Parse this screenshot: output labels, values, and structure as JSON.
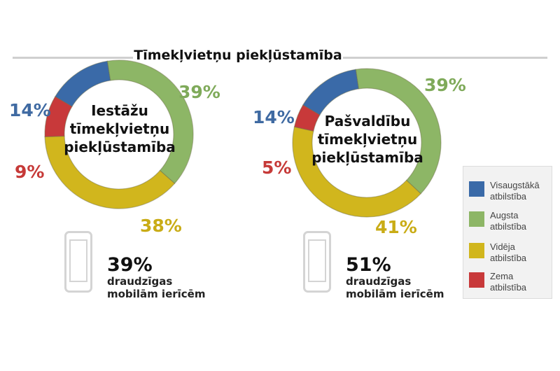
{
  "chart_data": [
    {
      "type": "pie",
      "title": "Tīmekļvietņu piekļūstamība",
      "center_label": [
        "Iestāžu",
        "tīmekļvietņu",
        "piekļūstamība"
      ],
      "categories": [
        "Visaugstākā atbilstība",
        "Augsta atbilstība",
        "Vidēja atbilstība",
        "Zema atbilstība"
      ],
      "values": [
        14,
        39,
        38,
        9
      ],
      "labels": [
        "14%",
        "39%",
        "38%",
        "9%"
      ],
      "mobile": {
        "pct": "39%",
        "text": [
          "draudzīgas",
          "mobilām ierīcēm"
        ]
      }
    },
    {
      "type": "pie",
      "center_label": [
        "Pašvaldību",
        "tīmekļvietņu",
        "piekļūstamība"
      ],
      "categories": [
        "Visaugstākā atbilstība",
        "Augsta atbilstība",
        "Vidēja atbilstība",
        "Zema atbilstība"
      ],
      "values": [
        14,
        39,
        41,
        5
      ],
      "labels": [
        "14%",
        "39%",
        "41%",
        "5%"
      ],
      "mobile": {
        "pct": "51%",
        "text": [
          "draudzīgas",
          "mobilām ierīcēm"
        ]
      }
    }
  ],
  "legend": [
    {
      "lines": [
        "Visaugstākā",
        "atbilstība"
      ],
      "color": "#3a6aa8"
    },
    {
      "lines": [
        "Augsta",
        "atbilstība"
      ],
      "color": "#8db666"
    },
    {
      "lines": [
        "Vidēja",
        "atbilstība"
      ],
      "color": "#d1b61d"
    },
    {
      "lines": [
        "Zema",
        "atbilstība"
      ],
      "color": "#c8393a"
    }
  ],
  "colors": {
    "blue": "#3a6aa8",
    "green": "#8db666",
    "yellow": "#d1b61d",
    "red": "#c8393a",
    "blue_text": "#3f6aa2",
    "green_text": "#7faa5a",
    "yellow_text": "#c9ac16",
    "red_text": "#c63a38"
  }
}
